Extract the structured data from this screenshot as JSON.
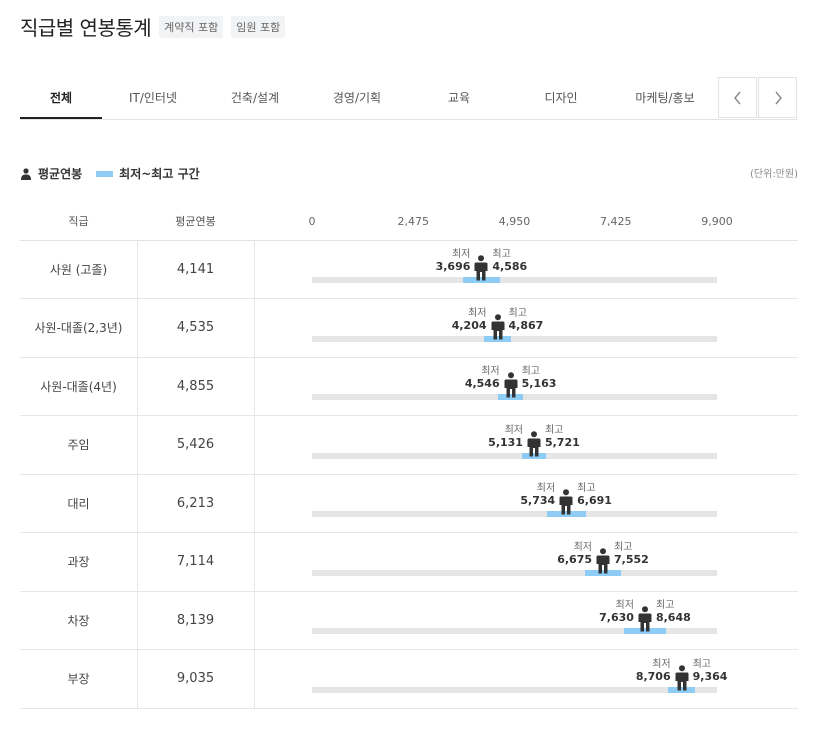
{
  "header": {
    "title": "직급별 연봉통계",
    "tags": [
      "계약직 포함",
      "임원 포함"
    ]
  },
  "tabs": [
    {
      "label": "전체",
      "active": true
    },
    {
      "label": "IT/인터넷",
      "active": false
    },
    {
      "label": "건축/설계",
      "active": false
    },
    {
      "label": "경영/기획",
      "active": false
    },
    {
      "label": "교육",
      "active": false
    },
    {
      "label": "디자인",
      "active": false
    },
    {
      "label": "마케팅/홍보",
      "active": false
    }
  ],
  "nav": {
    "prev_icon": "chevron-left-icon",
    "next_icon": "chevron-right-icon"
  },
  "legend": {
    "average_label": "평균연봉",
    "range_label": "최저~최고 구간",
    "unit": "(단위:만원)"
  },
  "table": {
    "col_rank": "직급",
    "col_avg": "평균연봉",
    "min_word": "최저",
    "max_word": "최고"
  },
  "colors": {
    "range": "#8dcdf5",
    "track": "#e5e5e5",
    "person": "#333333"
  },
  "chart_data": {
    "type": "range",
    "xlim": [
      0,
      9900
    ],
    "ticks": [
      "0",
      "2,475",
      "4,950",
      "7,425",
      "9,900"
    ],
    "rows": [
      {
        "rank": "사원 (고졸)",
        "avg": 4141,
        "avg_text": "4,141",
        "min": 3696,
        "min_text": "3,696",
        "max": 4586,
        "max_text": "4,586"
      },
      {
        "rank": "사원-대졸(2,3년)",
        "avg": 4535,
        "avg_text": "4,535",
        "min": 4204,
        "min_text": "4,204",
        "max": 4867,
        "max_text": "4,867"
      },
      {
        "rank": "사원-대졸(4년)",
        "avg": 4855,
        "avg_text": "4,855",
        "min": 4546,
        "min_text": "4,546",
        "max": 5163,
        "max_text": "5,163"
      },
      {
        "rank": "주임",
        "avg": 5426,
        "avg_text": "5,426",
        "min": 5131,
        "min_text": "5,131",
        "max": 5721,
        "max_text": "5,721"
      },
      {
        "rank": "대리",
        "avg": 6213,
        "avg_text": "6,213",
        "min": 5734,
        "min_text": "5,734",
        "max": 6691,
        "max_text": "6,691"
      },
      {
        "rank": "과장",
        "avg": 7114,
        "avg_text": "7,114",
        "min": 6675,
        "min_text": "6,675",
        "max": 7552,
        "max_text": "7,552"
      },
      {
        "rank": "차장",
        "avg": 8139,
        "avg_text": "8,139",
        "min": 7630,
        "min_text": "7,630",
        "max": 8648,
        "max_text": "8,648"
      },
      {
        "rank": "부장",
        "avg": 9035,
        "avg_text": "9,035",
        "min": 8706,
        "min_text": "8,706",
        "max": 9364,
        "max_text": "9,364"
      }
    ]
  }
}
